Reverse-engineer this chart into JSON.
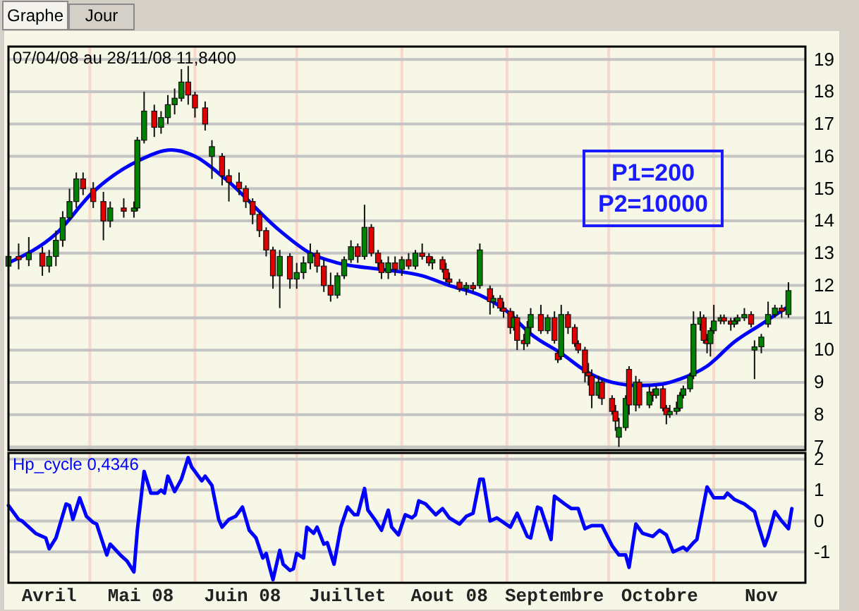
{
  "chart_data": [
    {
      "type": "candlestick",
      "title": "07/04/08 au 28/11/08  11,8400",
      "annotations": [
        "Graphe",
        "Jour",
        "P1=200",
        "P2=10000"
      ],
      "xlim": [
        "2008-04-07",
        "2008-11-28"
      ],
      "ylim": [
        6.9,
        19.4
      ],
      "yticks": [
        7,
        8,
        9,
        10,
        11,
        12,
        13,
        14,
        15,
        16,
        17,
        18,
        19
      ],
      "grid": "y",
      "tick_labels": "y",
      "ref_lines": [
        {
          "axis": "x",
          "value": "2008-05-01",
          "color": "#f8d8c8"
        },
        {
          "axis": "x",
          "value": "2008-06-01",
          "color": "#f8d8c8"
        },
        {
          "axis": "x",
          "value": "2008-07-01",
          "color": "#f8d8c8"
        },
        {
          "axis": "x",
          "value": "2008-08-01",
          "color": "#f8d8c8"
        },
        {
          "axis": "x",
          "value": "2008-09-01",
          "color": "#f8d8c8"
        },
        {
          "axis": "x",
          "value": "2008-10-01",
          "color": "#f8d8c8"
        },
        {
          "axis": "x",
          "value": "2008-11-01",
          "color": "#f8d8c8"
        }
      ],
      "x": [
        "2008-04-07",
        "2008-04-10",
        "2008-04-13",
        "2008-04-17",
        "2008-04-19",
        "2008-04-21",
        "2008-04-23",
        "2008-04-25",
        "2008-04-27",
        "2008-04-29",
        "2008-05-02",
        "2008-05-05",
        "2008-05-07",
        "2008-05-11",
        "2008-05-14",
        "2008-05-15",
        "2008-05-17",
        "2008-05-20",
        "2008-05-22",
        "2008-05-24",
        "2008-05-26",
        "2008-05-28",
        "2008-05-30",
        "2008-06-01",
        "2008-06-04",
        "2008-06-06",
        "2008-06-09",
        "2008-06-11",
        "2008-06-14",
        "2008-06-16",
        "2008-06-18",
        "2008-06-20",
        "2008-06-22",
        "2008-06-24",
        "2008-06-26",
        "2008-06-29",
        "2008-07-01",
        "2008-07-03",
        "2008-07-05",
        "2008-07-07",
        "2008-07-09",
        "2008-07-11",
        "2008-07-13",
        "2008-07-15",
        "2008-07-17",
        "2008-07-19",
        "2008-07-21",
        "2008-07-23",
        "2008-07-25",
        "2008-07-26",
        "2008-07-28",
        "2008-07-30",
        "2008-08-01",
        "2008-08-03",
        "2008-08-05",
        "2008-08-07",
        "2008-08-09",
        "2008-08-10",
        "2008-08-13",
        "2008-08-14",
        "2008-08-15",
        "2008-08-18",
        "2008-08-20",
        "2008-08-22",
        "2008-08-24",
        "2008-08-27",
        "2008-08-28",
        "2008-08-30",
        "2008-08-31",
        "2008-09-02",
        "2008-09-03",
        "2008-09-04",
        "2008-09-06",
        "2008-09-07",
        "2008-09-08",
        "2008-09-11",
        "2008-09-13",
        "2008-09-15",
        "2008-09-16",
        "2008-09-17",
        "2008-09-19",
        "2008-09-21",
        "2008-09-22",
        "2008-09-24",
        "2008-09-25",
        "2008-09-26",
        "2008-09-28",
        "2008-09-29",
        "2008-10-02",
        "2008-10-03",
        "2008-10-04",
        "2008-10-06",
        "2008-10-07",
        "2008-10-09",
        "2008-10-10",
        "2008-10-13",
        "2008-10-14",
        "2008-10-15",
        "2008-10-17",
        "2008-10-18",
        "2008-10-19",
        "2008-10-21",
        "2008-10-22",
        "2008-10-23",
        "2008-10-25",
        "2008-10-26",
        "2008-10-28",
        "2008-10-29",
        "2008-10-30",
        "2008-10-31",
        "2008-11-01",
        "2008-11-03",
        "2008-11-04",
        "2008-11-06",
        "2008-11-07",
        "2008-11-08",
        "2008-11-10",
        "2008-11-12",
        "2008-11-13",
        "2008-11-15",
        "2008-11-17",
        "2008-11-19",
        "2008-11-21",
        "2008-11-23"
      ],
      "ohlc": [
        [
          12.6,
          13.4,
          12.3,
          12.9
        ],
        [
          12.9,
          13.3,
          12.5,
          12.8
        ],
        [
          12.8,
          13.5,
          12.6,
          13.0
        ],
        [
          13.0,
          13.2,
          12.3,
          12.6
        ],
        [
          12.6,
          13.1,
          12.4,
          12.9
        ],
        [
          12.9,
          13.7,
          12.6,
          13.4
        ],
        [
          13.4,
          14.3,
          13.2,
          14.1
        ],
        [
          14.1,
          15.0,
          14.0,
          14.6
        ],
        [
          14.6,
          15.5,
          14.4,
          15.3
        ],
        [
          15.3,
          15.5,
          14.8,
          15.0
        ],
        [
          15.0,
          15.2,
          14.4,
          14.6
        ],
        [
          14.6,
          14.9,
          13.4,
          14.0
        ],
        [
          14.0,
          14.6,
          13.8,
          14.4
        ],
        [
          14.4,
          14.7,
          14.1,
          14.3
        ],
        [
          14.3,
          14.6,
          14.1,
          14.4
        ],
        [
          14.4,
          16.6,
          14.3,
          16.5
        ],
        [
          16.5,
          18.0,
          16.4,
          17.4
        ],
        [
          17.4,
          17.6,
          16.6,
          16.9
        ],
        [
          16.9,
          17.4,
          16.7,
          17.2
        ],
        [
          17.2,
          17.9,
          17.0,
          17.6
        ],
        [
          17.6,
          18.1,
          17.3,
          17.8
        ],
        [
          17.8,
          18.7,
          17.7,
          18.3
        ],
        [
          18.3,
          18.8,
          17.6,
          17.9
        ],
        [
          17.9,
          18.0,
          17.2,
          17.5
        ],
        [
          17.5,
          17.7,
          16.8,
          17.0
        ],
        [
          16.0,
          16.5,
          15.3,
          16.3
        ],
        [
          16.0,
          16.1,
          15.1,
          15.4
        ],
        [
          15.4,
          15.6,
          14.6,
          15.2
        ],
        [
          15.2,
          15.5,
          14.8,
          15.0
        ],
        [
          15.0,
          15.1,
          14.4,
          14.6
        ],
        [
          14.6,
          14.7,
          13.9,
          14.2
        ],
        [
          14.2,
          14.3,
          13.5,
          13.7
        ],
        [
          13.7,
          13.8,
          12.9,
          13.1
        ],
        [
          13.1,
          13.2,
          11.9,
          12.3
        ],
        [
          12.3,
          13.1,
          11.3,
          12.9
        ],
        [
          12.9,
          13.0,
          11.9,
          12.2
        ],
        [
          12.2,
          12.7,
          11.9,
          12.4
        ],
        [
          12.4,
          12.9,
          12.2,
          12.7
        ],
        [
          12.7,
          13.3,
          12.5,
          13.0
        ],
        [
          13.0,
          13.1,
          12.4,
          12.6
        ],
        [
          12.6,
          12.8,
          11.8,
          12.0
        ],
        [
          12.0,
          12.4,
          11.5,
          11.7
        ],
        [
          11.7,
          12.4,
          11.6,
          12.3
        ],
        [
          12.3,
          12.9,
          12.2,
          12.8
        ],
        [
          12.8,
          13.4,
          12.7,
          13.2
        ],
        [
          13.2,
          13.3,
          12.7,
          12.9
        ],
        [
          12.9,
          14.5,
          12.8,
          13.8
        ],
        [
          13.8,
          13.9,
          12.9,
          13.0
        ],
        [
          13.0,
          13.1,
          12.5,
          12.7
        ],
        [
          12.7,
          12.8,
          12.2,
          12.4
        ],
        [
          12.4,
          12.9,
          12.2,
          12.7
        ],
        [
          12.7,
          12.9,
          12.3,
          12.5
        ],
        [
          12.5,
          12.9,
          12.3,
          12.8
        ],
        [
          12.8,
          13.0,
          12.5,
          12.6
        ],
        [
          12.6,
          13.1,
          12.5,
          13.0
        ],
        [
          13.0,
          13.3,
          12.8,
          12.9
        ],
        [
          12.9,
          13.0,
          12.6,
          12.7
        ],
        [
          12.7,
          12.9,
          12.5,
          12.8
        ],
        [
          12.8,
          12.9,
          12.4,
          12.5
        ],
        [
          12.5,
          12.7,
          12.1,
          12.2
        ],
        [
          12.2,
          12.4,
          12.0,
          12.1
        ],
        [
          12.1,
          12.2,
          11.8,
          11.9
        ],
        [
          11.9,
          12.1,
          11.7,
          12.0
        ],
        [
          12.0,
          12.1,
          11.8,
          11.9
        ],
        [
          12.0,
          13.3,
          11.9,
          13.1
        ],
        [
          11.9,
          12.0,
          11.1,
          11.5
        ],
        [
          11.5,
          11.7,
          11.3,
          11.6
        ],
        [
          11.6,
          11.7,
          11.2,
          11.3
        ],
        [
          11.3,
          11.5,
          11.0,
          11.2
        ],
        [
          11.2,
          11.3,
          10.5,
          10.7
        ],
        [
          10.7,
          11.2,
          10.6,
          11.0
        ],
        [
          11.0,
          11.1,
          10.0,
          10.3
        ],
        [
          10.3,
          10.5,
          10.0,
          10.2
        ],
        [
          10.2,
          10.9,
          10.1,
          10.7
        ],
        [
          10.7,
          11.3,
          10.5,
          11.1
        ],
        [
          11.1,
          11.4,
          10.5,
          10.6
        ],
        [
          10.6,
          11.1,
          10.5,
          11.0
        ],
        [
          11.0,
          11.2,
          10.2,
          10.3
        ],
        [
          9.9,
          10.0,
          9.6,
          9.7
        ],
        [
          9.8,
          11.4,
          9.7,
          11.1
        ],
        [
          11.1,
          11.2,
          10.5,
          10.7
        ],
        [
          10.7,
          10.8,
          10.1,
          10.2
        ],
        [
          10.2,
          10.3,
          9.9,
          10.0
        ],
        [
          10.0,
          10.1,
          9.0,
          9.3
        ],
        [
          9.3,
          9.6,
          8.9,
          9.2
        ],
        [
          9.2,
          9.4,
          8.2,
          8.6
        ],
        [
          8.6,
          9.2,
          8.5,
          9.0
        ],
        [
          9.0,
          9.1,
          8.3,
          8.5
        ],
        [
          8.5,
          8.6,
          8.0,
          8.1
        ],
        [
          8.1,
          8.3,
          7.5,
          7.8
        ],
        [
          7.3,
          7.9,
          7.0,
          7.6
        ],
        [
          7.6,
          8.6,
          7.5,
          8.5
        ],
        [
          9.4,
          9.5,
          8.0,
          8.3
        ],
        [
          8.3,
          9.2,
          8.1,
          9.0
        ],
        [
          9.0,
          9.1,
          8.2,
          8.3
        ],
        [
          8.3,
          8.9,
          8.2,
          8.7
        ],
        [
          8.7,
          8.8,
          8.4,
          8.6
        ],
        [
          8.6,
          8.9,
          8.5,
          8.8
        ],
        [
          8.8,
          8.9,
          8.1,
          8.2
        ],
        [
          8.2,
          8.3,
          7.7,
          8.0
        ],
        [
          8.0,
          8.3,
          7.9,
          8.1
        ],
        [
          8.1,
          8.4,
          8.0,
          8.2
        ],
        [
          8.2,
          8.7,
          8.1,
          8.6
        ],
        [
          8.6,
          8.9,
          8.5,
          8.8
        ],
        [
          8.8,
          9.3,
          8.7,
          9.2
        ],
        [
          9.2,
          11.2,
          9.1,
          10.8
        ],
        [
          10.8,
          11.2,
          10.6,
          11.0
        ],
        [
          11.0,
          11.1,
          10.2,
          10.3
        ],
        [
          10.3,
          10.5,
          9.9,
          10.2
        ],
        [
          10.2,
          10.7,
          9.8,
          10.6
        ],
        [
          10.6,
          11.4,
          10.5,
          10.9
        ],
        [
          10.9,
          11.1,
          10.8,
          11.0
        ],
        [
          11.0,
          11.1,
          10.8,
          10.9
        ],
        [
          10.9,
          11.0,
          10.6,
          10.8
        ],
        [
          10.8,
          11.0,
          10.7,
          10.9
        ],
        [
          10.9,
          11.1,
          10.8,
          11.0
        ],
        [
          11.0,
          11.3,
          10.9,
          11.1
        ],
        [
          11.1,
          11.2,
          10.7,
          10.8
        ],
        [
          10.0,
          10.3,
          9.1,
          10.1
        ],
        [
          10.1,
          10.5,
          9.9,
          10.4
        ],
        [
          10.8,
          11.5,
          10.7,
          11.1
        ],
        [
          11.1,
          11.4,
          11.0,
          11.3
        ],
        [
          11.3,
          11.4,
          11.0,
          11.2
        ],
        [
          11.1,
          12.1,
          11.0,
          11.84
        ]
      ],
      "series": [
        {
          "type": "line",
          "color": "#0000ff",
          "x": [
            "2008-04-07",
            "2008-04-21",
            "2008-05-02",
            "2008-05-16",
            "2008-05-25",
            "2008-06-01",
            "2008-06-10",
            "2008-06-26",
            "2008-07-05",
            "2008-07-13",
            "2008-07-26",
            "2008-08-07",
            "2008-08-15",
            "2008-08-24",
            "2008-09-01",
            "2008-09-08",
            "2008-09-17",
            "2008-09-25",
            "2008-10-02",
            "2008-10-10",
            "2008-10-17",
            "2008-10-22",
            "2008-10-30",
            "2008-11-07",
            "2008-11-15",
            "2008-11-23"
          ],
          "values": [
            12.7,
            13.6,
            14.9,
            15.9,
            16.2,
            16.0,
            15.3,
            13.7,
            13.0,
            12.7,
            12.5,
            12.3,
            12.0,
            11.7,
            11.2,
            10.5,
            9.9,
            9.3,
            9.0,
            8.9,
            8.95,
            9.1,
            9.5,
            10.25,
            10.8,
            11.35
          ]
        }
      ]
    },
    {
      "type": "line",
      "title": "Hp_cycle  0,4346",
      "xlim": [
        "2008-04-07",
        "2008-11-28"
      ],
      "ylim": [
        -2.0,
        2.2
      ],
      "yticks": [
        2,
        1,
        0,
        -1
      ],
      "grid": "y",
      "xticks": [
        {
          "value": "2008-04-19",
          "label": "Avril"
        },
        {
          "value": "2008-05-16",
          "label": "Mai 08"
        },
        {
          "value": "2008-06-15",
          "label": "Juin 08"
        },
        {
          "value": "2008-07-16",
          "label": "Juillet"
        },
        {
          "value": "2008-08-15",
          "label": "Aout 08"
        },
        {
          "value": "2008-09-15",
          "label": "Septembre"
        },
        {
          "value": "2008-10-16",
          "label": "Octobre"
        },
        {
          "value": "2008-11-15",
          "label": "Nov"
        }
      ],
      "ref_lines": [
        {
          "axis": "x",
          "value": "2008-05-01",
          "color": "#f8d8c8"
        },
        {
          "axis": "x",
          "value": "2008-06-01",
          "color": "#f8d8c8"
        },
        {
          "axis": "x",
          "value": "2008-07-01",
          "color": "#f8d8c8"
        },
        {
          "axis": "x",
          "value": "2008-08-01",
          "color": "#f8d8c8"
        },
        {
          "axis": "x",
          "value": "2008-09-01",
          "color": "#f8d8c8"
        },
        {
          "axis": "x",
          "value": "2008-10-01",
          "color": "#f8d8c8"
        },
        {
          "axis": "x",
          "value": "2008-11-01",
          "color": "#f8d8c8"
        }
      ],
      "series": [
        {
          "color": "#0000ff",
          "x": [
            "2008-04-07",
            "2008-04-10",
            "2008-04-11",
            "2008-04-15",
            "2008-04-18",
            "2008-04-19",
            "2008-04-21",
            "2008-04-24",
            "2008-04-25",
            "2008-04-26",
            "2008-04-28",
            "2008-04-30",
            "2008-05-02",
            "2008-05-03",
            "2008-05-06",
            "2008-05-07",
            "2008-05-10",
            "2008-05-12",
            "2008-05-14",
            "2008-05-15",
            "2008-05-17",
            "2008-05-19",
            "2008-05-21",
            "2008-05-22",
            "2008-05-23",
            "2008-05-24",
            "2008-05-26",
            "2008-05-28",
            "2008-05-30",
            "2008-05-31",
            "2008-06-01",
            "2008-06-03",
            "2008-06-04",
            "2008-06-06",
            "2008-06-08",
            "2008-06-09",
            "2008-06-11",
            "2008-06-13",
            "2008-06-15",
            "2008-06-17",
            "2008-06-19",
            "2008-06-21",
            "2008-06-22",
            "2008-06-23",
            "2008-06-24",
            "2008-06-26",
            "2008-06-27",
            "2008-06-29",
            "2008-06-30",
            "2008-07-01",
            "2008-07-03",
            "2008-07-04",
            "2008-07-06",
            "2008-07-07",
            "2008-07-09",
            "2008-07-10",
            "2008-07-12",
            "2008-07-14",
            "2008-07-16",
            "2008-07-18",
            "2008-07-19",
            "2008-07-21",
            "2008-07-22",
            "2008-07-24",
            "2008-07-26",
            "2008-07-28",
            "2008-07-29",
            "2008-07-31",
            "2008-08-02",
            "2008-08-04",
            "2008-08-05",
            "2008-08-06",
            "2008-08-08",
            "2008-08-11",
            "2008-08-13",
            "2008-08-15",
            "2008-08-18",
            "2008-08-20",
            "2008-08-22",
            "2008-08-24",
            "2008-08-25",
            "2008-08-27",
            "2008-08-29",
            "2008-09-02",
            "2008-09-04",
            "2008-09-07",
            "2008-09-08",
            "2008-09-10",
            "2008-09-11",
            "2008-09-14",
            "2008-09-15",
            "2008-09-18",
            "2008-09-20",
            "2008-09-22",
            "2008-09-24",
            "2008-09-26",
            "2008-09-29",
            "2008-10-02",
            "2008-10-04",
            "2008-10-06",
            "2008-10-07",
            "2008-10-09",
            "2008-10-11",
            "2008-10-14",
            "2008-10-16",
            "2008-10-18",
            "2008-10-20",
            "2008-10-23",
            "2008-10-24",
            "2008-10-26",
            "2008-10-27",
            "2008-10-30",
            "2008-11-01",
            "2008-11-04",
            "2008-11-05",
            "2008-11-07",
            "2008-11-10",
            "2008-11-13",
            "2008-11-14",
            "2008-11-16",
            "2008-11-17",
            "2008-11-19",
            "2008-11-21",
            "2008-11-23",
            "2008-11-24"
          ],
          "values": [
            0.5,
            0.05,
            0.0,
            -0.4,
            -0.55,
            -0.9,
            -0.55,
            0.55,
            0.5,
            0.05,
            0.75,
            0.15,
            -0.05,
            -0.1,
            -1.1,
            -0.75,
            -1.1,
            -1.3,
            -1.65,
            -0.3,
            1.6,
            0.9,
            0.9,
            1.0,
            0.9,
            1.45,
            0.95,
            1.35,
            2.05,
            1.75,
            1.6,
            1.3,
            1.45,
            1.15,
            0.05,
            -0.2,
            0.05,
            0.15,
            0.45,
            -0.3,
            -0.55,
            -1.2,
            -1.05,
            -1.5,
            -1.9,
            -0.95,
            -1.4,
            -1.6,
            -1.55,
            -1.05,
            -1.2,
            -0.2,
            -0.4,
            -0.2,
            -0.75,
            -0.7,
            -1.4,
            -0.2,
            0.45,
            0.2,
            0.2,
            1.05,
            0.35,
            0.05,
            -0.3,
            0.35,
            -0.2,
            -0.45,
            0.2,
            0.1,
            0.2,
            0.65,
            0.55,
            0.2,
            0.4,
            0.1,
            -0.1,
            0.15,
            0.25,
            1.35,
            1.35,
            0.0,
            0.1,
            -0.2,
            0.25,
            -0.5,
            -0.55,
            0.45,
            0.4,
            -0.6,
            0.8,
            0.55,
            0.4,
            0.4,
            -0.25,
            -0.15,
            -0.15,
            -0.8,
            -1.1,
            -1.1,
            -1.5,
            -0.1,
            -0.4,
            -0.5,
            -0.3,
            -0.45,
            -1.0,
            -0.85,
            -0.95,
            -0.7,
            -0.6,
            1.1,
            0.75,
            0.75,
            0.9,
            0.7,
            0.55,
            0.3,
            -0.1,
            -0.8,
            -0.5,
            0.3,
            0.0,
            -0.25,
            0.4
          ]
        }
      ]
    }
  ]
}
